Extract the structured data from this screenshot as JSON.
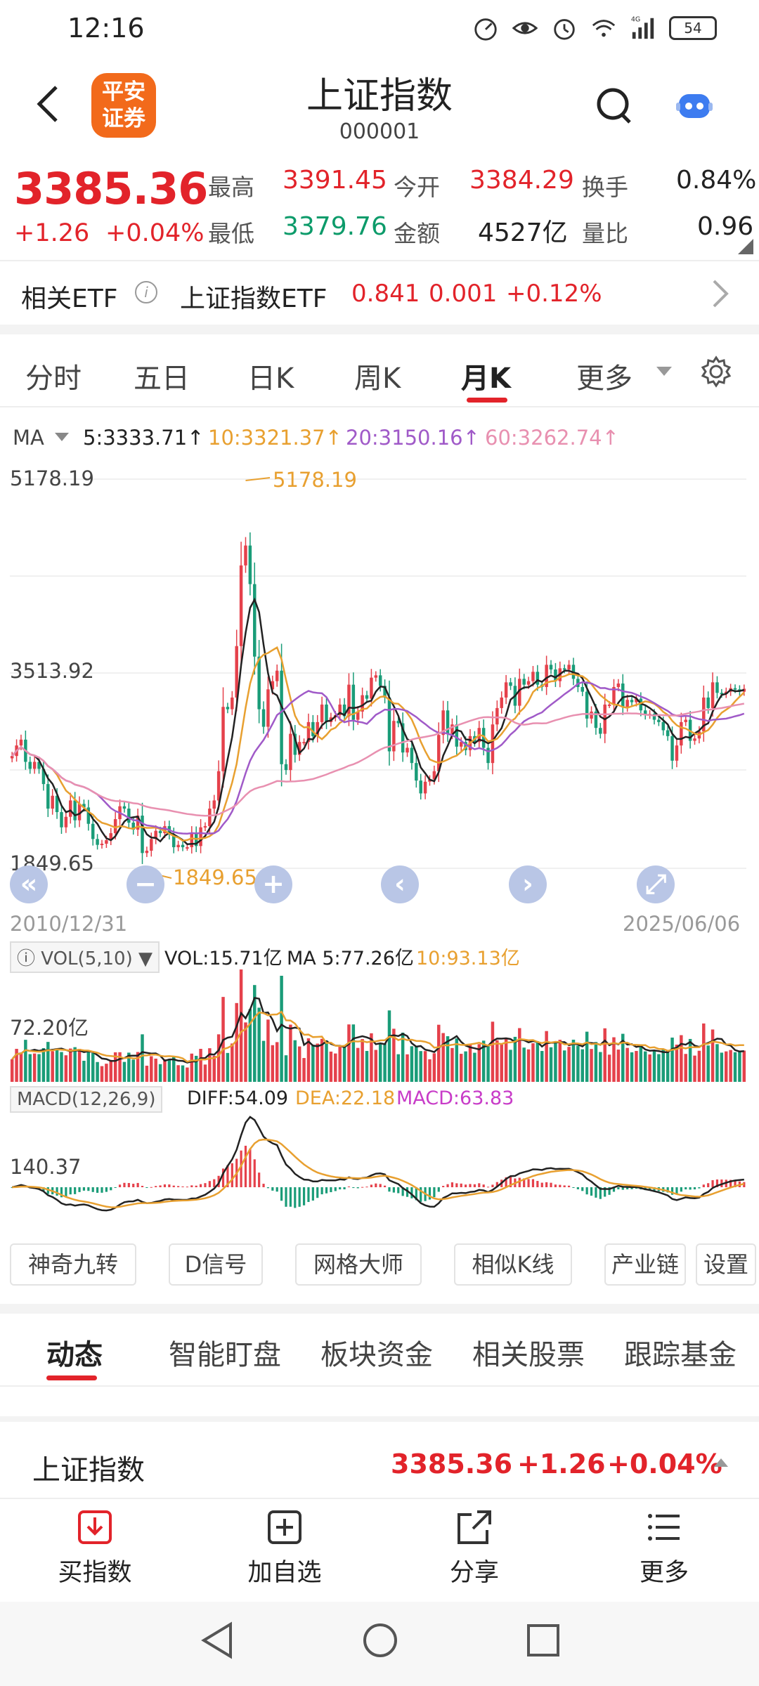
{
  "status": {
    "time": "12:16",
    "battery": "54",
    "network": "4G"
  },
  "header": {
    "title": "上证指数",
    "code": "000001",
    "logo_line1": "平安",
    "logo_line2": "证券"
  },
  "quote": {
    "price": "3385.36",
    "change": "+1.26",
    "change_pct": "+0.04%",
    "stats": [
      {
        "label": "最高",
        "value": "3391.45",
        "color": "red"
      },
      {
        "label": "今开",
        "value": "3384.29",
        "color": "red"
      },
      {
        "label": "换手",
        "value": "0.84%",
        "color": "dark"
      },
      {
        "label": "最低",
        "value": "3379.76",
        "color": "green"
      },
      {
        "label": "金额",
        "value": "4527亿",
        "color": "dark"
      },
      {
        "label": "量比",
        "value": "0.96",
        "color": "dark"
      }
    ]
  },
  "etf": {
    "label": "相关ETF",
    "name": "上证指数ETF",
    "price": "0.841",
    "change": "0.001",
    "change_pct": "+0.12%"
  },
  "period_tabs": [
    {
      "label": "分时"
    },
    {
      "label": "五日"
    },
    {
      "label": "日K"
    },
    {
      "label": "周K"
    },
    {
      "label": "月K",
      "active": true
    },
    {
      "label": "更多"
    }
  ],
  "ma_legend": {
    "label": "MA",
    "ma5": "5:3333.71↑",
    "ma10": "10:3321.37↑",
    "ma20": "20:3150.16↑",
    "ma60": "60:3262.74↑",
    "colors": {
      "ma5": "#222222",
      "ma10": "#e8a030",
      "ma20": "#a05ac8",
      "ma60": "#e890b0"
    }
  },
  "chart_data": {
    "type": "candlestick",
    "title": "上证指数 月K",
    "y_labels": [
      "5178.19",
      "3513.92",
      "1849.65"
    ],
    "high_marker": "5178.19",
    "low_marker": "1849.65",
    "start_date": "2010/12/31",
    "end_date": "2025/06/06",
    "closes": [
      2810,
      2900,
      2950,
      2760,
      2700,
      2760,
      2700,
      2570,
      2360,
      2470,
      2330,
      2200,
      2290,
      2430,
      2260,
      2400,
      2370,
      2230,
      2100,
      2050,
      2060,
      2090,
      2150,
      2270,
      2380,
      2360,
      2240,
      2180,
      2300,
      1980,
      2000,
      2100,
      2170,
      2150,
      2210,
      2140,
      2030,
      2050,
      2030,
      2030,
      2150,
      2040,
      2200,
      2210,
      2360,
      2430,
      2680,
      3230,
      3210,
      3310,
      3750,
      4440,
      4610,
      4280,
      3660,
      3210,
      3060,
      3380,
      3450,
      3540,
      2740,
      2690,
      3000,
      2820,
      2930,
      2930,
      3100,
      2980,
      3100,
      3250,
      3100,
      3140,
      3160,
      3250,
      3150,
      3420,
      3120,
      3190,
      3330,
      3300,
      3480,
      3500,
      3410,
      3310,
      2850,
      3110,
      3090,
      2840,
      2880,
      2750,
      2600,
      2490,
      2590,
      2610,
      2680,
      2990,
      3200,
      3000,
      3080,
      2890,
      2930,
      2860,
      2980,
      2930,
      3050,
      2880,
      2750,
      3080,
      3220,
      3310,
      3440,
      3410,
      3240,
      3470,
      3420,
      3450,
      3530,
      3420,
      3400,
      3590,
      3550,
      3450,
      3560,
      3550,
      3590,
      3470,
      3400,
      3360,
      3130,
      3190,
      3050,
      3000,
      3250,
      3250,
      3400,
      3430,
      3230,
      3290,
      3270,
      3300,
      3200,
      3160,
      3170,
      3120,
      3100,
      3030,
      2980,
      2770,
      2900,
      3100,
      3120,
      2940,
      2960,
      3020,
      3310,
      3220,
      3440,
      3350,
      3340,
      3360,
      3390,
      3380,
      3360,
      3385
    ],
    "volume_label": "72.20亿",
    "vol_legend": "VOL(5,10)",
    "vol": "VOL:15.71亿",
    "vol_ma5": "MA 5:77.26亿",
    "vol_ma10": "10:93.13亿",
    "macd_legend": "MACD(12,26,9)",
    "diff": "DIFF:54.09",
    "dea": "DEA:22.18",
    "macd": "MACD:63.83",
    "macd_label": "140.37"
  },
  "tools": [
    "神奇九转",
    "D信号",
    "网格大师",
    "相似K线",
    "产业链",
    "设置"
  ],
  "news_tabs": [
    "动态",
    "智能盯盘",
    "板块资金",
    "相关股票",
    "跟踪基金"
  ],
  "bottom_quote": {
    "name": "上证指数",
    "price": "3385.36",
    "change": "+1.26",
    "change_pct": "+0.04%"
  },
  "actions": [
    "买指数",
    "加自选",
    "分享",
    "更多"
  ]
}
